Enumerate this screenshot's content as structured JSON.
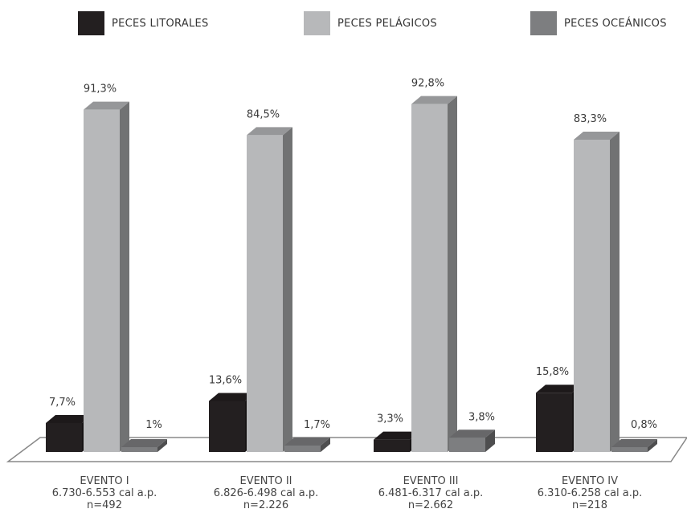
{
  "chart_data": {
    "type": "bar",
    "categories": [
      {
        "name": "EVENTO I",
        "dates": "6.730-6.553 cal a.p.",
        "n": "n=492"
      },
      {
        "name": "EVENTO II",
        "dates": "6.826-6.498 cal a.p.",
        "n": "n=2.226"
      },
      {
        "name": "EVENTO III",
        "dates": "6.481-6.317 cal a.p.",
        "n": "n=2.662"
      },
      {
        "name": "EVENTO IV",
        "dates": "6.310-6.258 cal a.p.",
        "n": "n=218"
      }
    ],
    "series": [
      {
        "name": "PECES LITORALES",
        "values": [
          7.7,
          13.6,
          3.3,
          15.8
        ],
        "labels": [
          "7,7%",
          "13,6%",
          "3,3%",
          "15,8%"
        ],
        "color": "#231f20"
      },
      {
        "name": "PECES PELÁGICOS",
        "values": [
          91.3,
          84.5,
          92.8,
          83.3
        ],
        "labels": [
          "91,3%",
          "84,5%",
          "92,8%",
          "83,3%"
        ],
        "color": "#b7b8ba"
      },
      {
        "name": "PECES OCEÁNICOS",
        "values": [
          1,
          1.7,
          3.8,
          0.8
        ],
        "labels": [
          "1%",
          "1,7%",
          "3,8%",
          "0,8%"
        ],
        "color": "#7d7e80"
      }
    ],
    "ylim": [
      0,
      100
    ],
    "grid": false,
    "legend_position": "top",
    "style": "3d"
  }
}
